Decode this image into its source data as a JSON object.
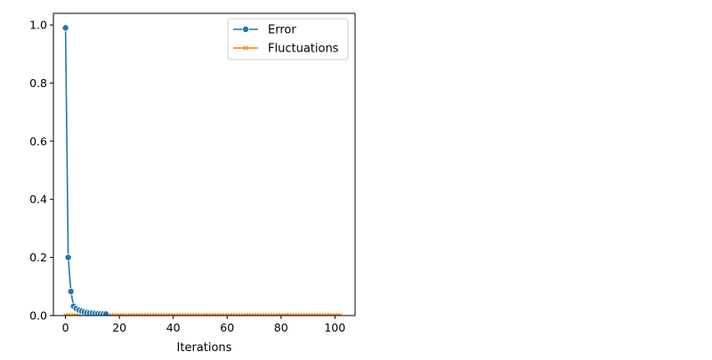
{
  "chart_data": {
    "type": "line",
    "title": "",
    "xlabel": "Iterations",
    "ylabel": "",
    "xlim": [
      -4.5,
      107.5
    ],
    "ylim": [
      0,
      1.04
    ],
    "xticks": [
      0,
      20,
      40,
      60,
      80,
      100
    ],
    "yticks": [
      0.0,
      0.2,
      0.4,
      0.6,
      0.8,
      1.0
    ],
    "xtick_labels": [
      "0",
      "20",
      "40",
      "60",
      "80",
      "100"
    ],
    "ytick_labels": [
      "0.0",
      "0.2",
      "0.4",
      "0.6",
      "0.8",
      "1.0"
    ],
    "grid": false,
    "legend_position": "top-right",
    "series": [
      {
        "name": "Error",
        "color": "#1f77b4",
        "marker": "circle",
        "values": [
          0.99,
          0.2,
          0.083,
          0.032,
          0.024,
          0.019,
          0.015,
          0.012,
          0.01,
          0.009,
          0.008,
          0.007,
          0.006,
          0.006,
          0.005,
          0.005
        ]
      },
      {
        "name": "Fluctuations",
        "color": "#ff7f0e",
        "marker": "x",
        "x_range": [
          0,
          102
        ],
        "constant_value": 0.001
      }
    ]
  }
}
